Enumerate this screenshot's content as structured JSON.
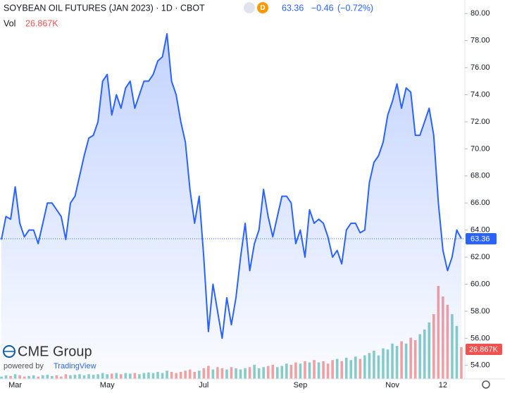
{
  "chart_data": {
    "type": "line",
    "title": "SOYBEAN OIL FUTURES (JAN 2023) · 1D · CBOT",
    "interval_badge": "D",
    "change": {
      "value": -0.46,
      "label": "−0.46"
    },
    "change_pct": {
      "value": -0.72,
      "label": "(−0.72%)"
    },
    "brand": "CME Group",
    "powered_by": "powered by",
    "powered_brand": "TradingView",
    "categories": [
      null,
      null,
      null,
      "Mar",
      null,
      null,
      null,
      null,
      null,
      null,
      null,
      null,
      null,
      null,
      null,
      null,
      null,
      null,
      null,
      null,
      null,
      null,
      null,
      "May",
      null,
      null,
      null,
      null,
      null,
      null,
      null,
      null,
      null,
      null,
      null,
      null,
      null,
      null,
      null,
      null,
      null,
      null,
      null,
      null,
      "Jul",
      null,
      null,
      null,
      null,
      null,
      null,
      null,
      null,
      null,
      null,
      null,
      null,
      null,
      null,
      null,
      null,
      null,
      null,
      null,
      null,
      "Sep",
      null,
      null,
      null,
      null,
      null,
      null,
      null,
      null,
      null,
      null,
      null,
      null,
      null,
      null,
      null,
      null,
      null,
      null,
      null,
      "Nov",
      null,
      null,
      null,
      null,
      null,
      null,
      null,
      null,
      null,
      null,
      "12",
      null,
      null,
      null,
      null
    ],
    "series": [
      {
        "name": "SOYBEAN OIL FUTURES (JAN 2023)",
        "color": "#2962ff",
        "values": [
          63.3,
          65,
          64.8,
          67.2,
          64.5,
          63.5,
          64,
          64,
          63,
          64.5,
          66,
          66,
          65.5,
          65,
          63.3,
          66,
          66.5,
          68,
          69.5,
          70.8,
          71,
          72,
          75,
          75.5,
          72.5,
          74,
          73,
          74.5,
          75,
          73,
          74,
          75,
          75,
          75.5,
          76.5,
          76.8,
          78.5,
          75,
          74,
          72,
          70.5,
          67,
          64.5,
          66.5,
          62,
          56.5,
          60,
          58,
          56,
          59,
          57,
          59,
          62,
          64.5,
          61,
          63,
          64,
          67,
          65,
          63.5,
          65,
          66.5,
          66.5,
          66,
          63,
          64,
          62,
          65.5,
          64.5,
          64.8,
          64.5,
          63.5,
          62,
          62.5,
          61.5,
          64,
          64.5,
          64.5,
          63.8,
          64,
          67.5,
          69,
          69.5,
          70.5,
          72.5,
          73.5,
          74.8,
          73,
          74.5,
          74.2,
          71,
          71,
          72,
          73,
          71,
          66,
          62.5,
          61,
          62,
          64,
          63.36
        ]
      },
      {
        "name": "Vol",
        "color": "#ef5350",
        "up_color": "#26a69a",
        "values": [
          2,
          3,
          2.5,
          4,
          3,
          2,
          2.5,
          3,
          2,
          3,
          3.5,
          2.5,
          3,
          2,
          4,
          3,
          3.5,
          4,
          3,
          4,
          3.5,
          4,
          5,
          4,
          4.5,
          5,
          4,
          5,
          4.5,
          5,
          4,
          5,
          5.5,
          5,
          6,
          5,
          7,
          6,
          5,
          6,
          7,
          8,
          6,
          7,
          9,
          11,
          8,
          10,
          9,
          8,
          10,
          9,
          8,
          9,
          10,
          12,
          9,
          10,
          11,
          12,
          10,
          11,
          13,
          12,
          14,
          13,
          15,
          14,
          16,
          14,
          15,
          13,
          16,
          17,
          15,
          18,
          16,
          19,
          17,
          20,
          22,
          24,
          20,
          26,
          25,
          30,
          28,
          32,
          30,
          35,
          33,
          38,
          42,
          48,
          55,
          79,
          70,
          63,
          55,
          45,
          26.867
        ],
        "value_labels": [
          null,
          null,
          null,
          null,
          null,
          null,
          null,
          null,
          null,
          null,
          null,
          null,
          null,
          null,
          null,
          null,
          null,
          null,
          null,
          null,
          null,
          null,
          null,
          null,
          null,
          null,
          null,
          null,
          null,
          null,
          null,
          null,
          null,
          null,
          null,
          null,
          null,
          null,
          null,
          null,
          null,
          null,
          null,
          null,
          null,
          null,
          null,
          null,
          null,
          null,
          null,
          null,
          null,
          null,
          null,
          null,
          null,
          null,
          null,
          null,
          null,
          null,
          null,
          null,
          null,
          null,
          null,
          null,
          null,
          null,
          null,
          null,
          null,
          null,
          null,
          null,
          null,
          null,
          null,
          null,
          null,
          null,
          null,
          null,
          null,
          null,
          null,
          null,
          null,
          null,
          null,
          null,
          null,
          null,
          null,
          null,
          null,
          null,
          null,
          null,
          "26.867K"
        ]
      }
    ],
    "ylim": [
      53,
      81
    ],
    "yticks": [
      {
        "value": 54,
        "label": "54.00"
      },
      {
        "value": 56,
        "label": "56.00"
      },
      {
        "value": 58,
        "label": "58.00"
      },
      {
        "value": 60,
        "label": "60.00"
      },
      {
        "value": 62,
        "label": "62.00"
      },
      {
        "value": 64,
        "label": "64.00"
      },
      {
        "value": 66,
        "label": "66.00"
      },
      {
        "value": 68,
        "label": "68.00"
      },
      {
        "value": 70,
        "label": "70.00"
      },
      {
        "value": 72,
        "label": "72.00"
      },
      {
        "value": 74,
        "label": "74.00"
      },
      {
        "value": 76,
        "label": "76.00"
      },
      {
        "value": 78,
        "label": "78.00"
      },
      {
        "value": 80,
        "label": "80.00"
      }
    ],
    "grid": false
  }
}
